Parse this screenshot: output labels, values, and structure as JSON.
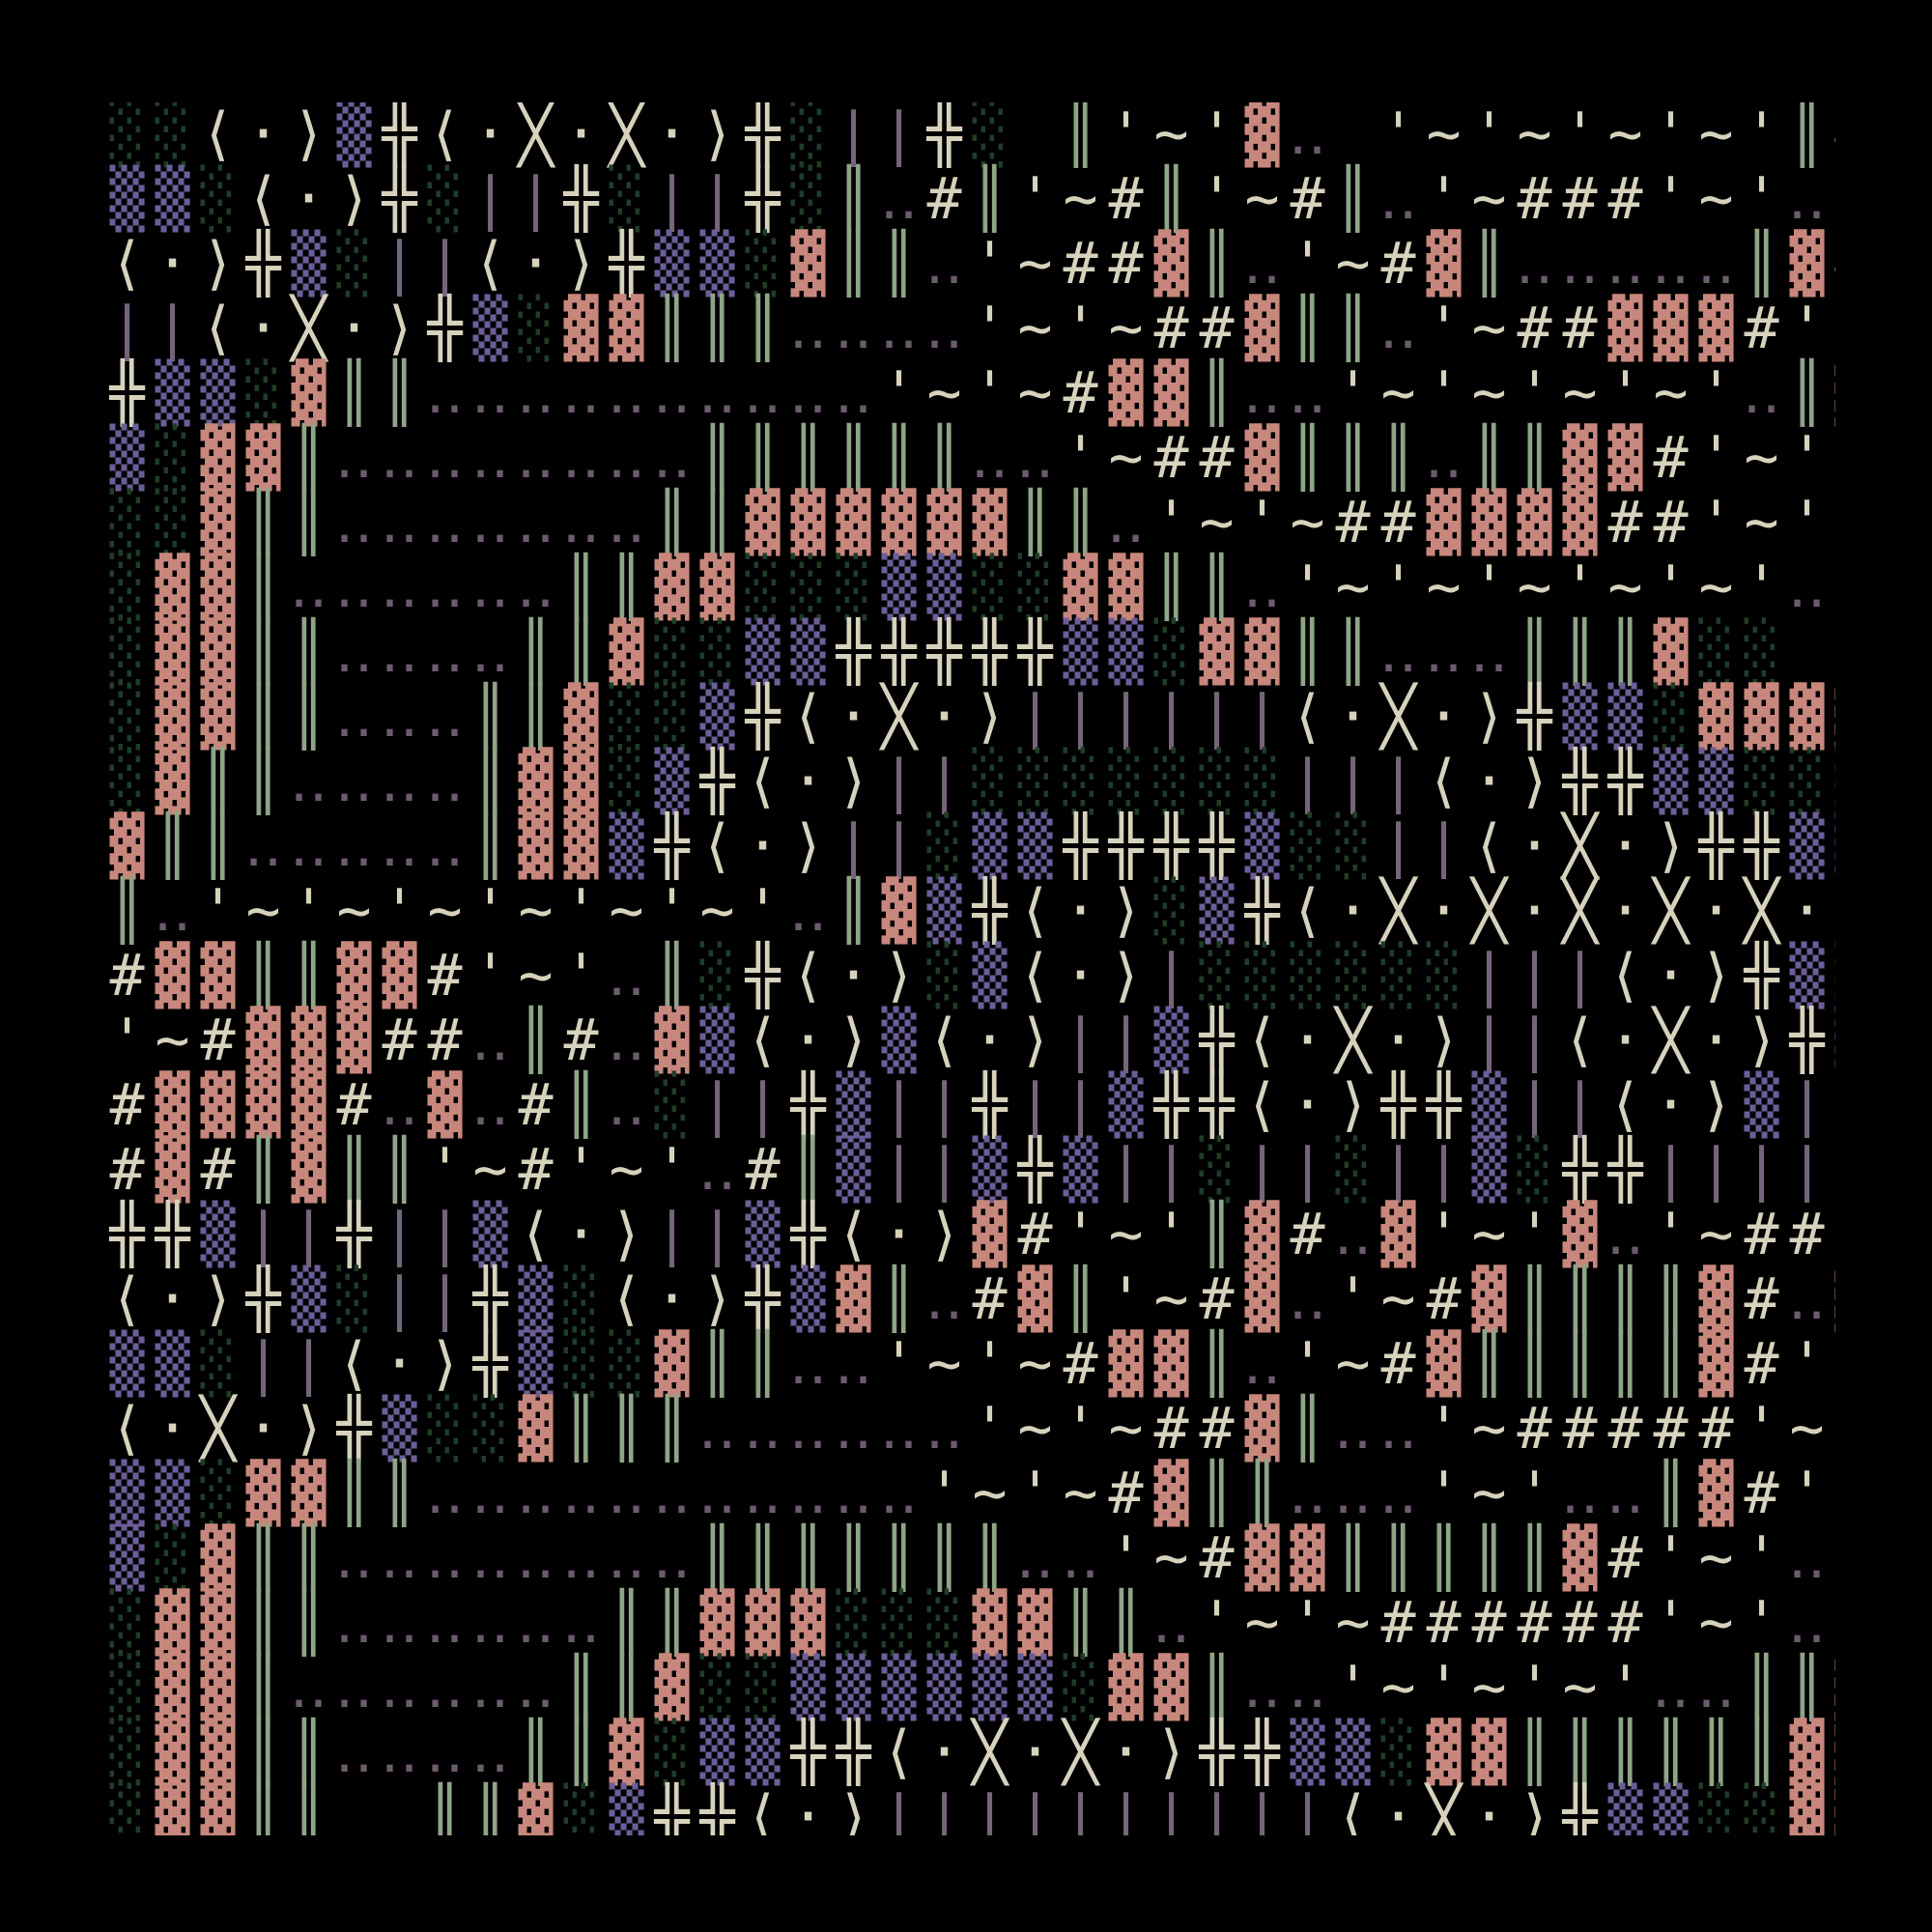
{
  "palette": {
    "background": "#000000",
    "light_shade": "#1f3d27",
    "medium_shade": "#6b5e99",
    "dark_shade": "#c8877c",
    "double_bar": "#8ea587",
    "cream": "#d6d2bc",
    "thin_bar": "#75657a",
    "dots": "#6c5a6e"
  },
  "rows": [
    "░░⟨·⟩▒╬⟨·╳·╳·⟩╬░||╬░ ║'~'▓‥ '~'~'~'~'║# ║ ║ ║#‥ '~'~'‥ ▓'~'▓‥ ░|",
    "▒▒░⟨·⟩╬░||╬░||╬░║‥#║'~#║'~#║‥'~###'~'‥║#‥#║'~'▓=",
    "⟨·⟩╬▒░||⟨·⟩╬▒▒░▓║║‥'~##▓║‥'~#▓║‥‥‥‥‥║▓#‥▓'~'║",
    "||⟨·╳·⟩╬▒░▓▓║║║‥‥‥‥'~'~##▓║║‥'~##▓▓▓#'~'‥║▓'~'‥▓",
    "╬▒▒░▓║║‥‥‥‥‥‥‥‥‥‥'~'~#▓▓║‥‥'~'~'~'~'‥║▓#'~'‥▓",
    "▒░▓▓║‥‥‥‥‥‥‥‥║║║║║║‥‥'~##▓║║║‥║║▓▓#'~'‥▓",
    "░░▓║║‥‥‥‥‥‥‥║║▓▓▓▓▓▓║║‥'~'~##▓▓▓▓##'~'‥║▓",
    "░▓▓║‥‥‥‥‥‥║║▓▓░░░▒▒░░▓▓║║‥'~'~'~'~'~'‥‥║▓░",
    "░▓▓║║‥‥‥‥║║▓░░▒▒╬╬╬╬╬▒▒░▓▓║║‥‥‥║║║▓░░",
    "░▓▓║║‥‥‥║║▓░░▒╬⟨·╳·⟩||||||⟨·╳·⟩╬▒▒░▓▓▓▓▓▓░░▒▒",
    "░▓║║‥‥‥‥║▓▓░▒╬⟨·⟩||░░░░░░░|||⟨·⟩╬╬▒▒░░░░▒▒▒=",
    "▓║║‥‥‥‥‥║▓▓▒╬⟨·⟩||░▒▒╬╬╬╬▒░░||⟨·╳·⟩╬╬▒▒▒▒╬╬=",
    "║‥'~'~'~'~'~'~'‥║▓▒╬⟨·⟩░▒╬⟨·╳·╳·╳·╳·╳·⟩╬╬▒░|||⟨·╳·⟩╬╬╬╬╬=",
    "#▓▓║║▓▓#'~'‥║░╬⟨·⟩░▒⟨·⟩|░░░░░░|||⟨·⟩╬▒░░||⟨·╳·⟩╬╬╬▒",
    "'~#▓▓▓##‥║#‥▓▒⟨·⟩▒⟨·⟩||▒╬⟨·╳·⟩||⟨·╳·⟩╬▒░||⟨·⟩╬▒░||⟨·⟩╬▒░",
    "#▓▓▓▓#‥▓‥#║‥░||╬▒||╬||▒╬╬⟨·⟩╬╬▒||⟨·⟩▒||╬||╬░⟨·⟩░",
    "#▓#║▓║║'~#'~'‥#║▒||▒╬▒||░||░||▒░╬╬||||⟨·⟩░▒▒░||‥#",
    "╬╬▒||╬||▒⟨·⟩||▒╬⟨·⟩▓#'~'║▓#‥▓'~'▓‥'~##'~'‥▓‥'~#▓▓▓░░",
    "⟨·⟩╬▒░||╬▒░⟨·⟩╬▒▓║‥#▓║'~#▓‥'~#▓║║║║▓#‥▓'~'║'~'║▒",
    "▒▒░||⟨·⟩╬▒░░▓║║‥‥'~'~#▓▓║‥'~#▓║║║║║▓#'~'‥▓'~'║▓",
    "⟨·╳·⟩╬▒░░▓║║║‥‥‥‥‥‥'~'~##▓║‥‥'~#####'~'‥║▓'~'‥▓",
    "▒▒░▓▓║║‥‥‥‥‥‥‥‥‥‥‥'~'~#▓║║‥‥‥'~'‥‥║▓#'~'‥",
    "▒░▓║║‥‥‥‥‥‥‥‥║║║║║║║‥‥'~#▓▓║║║║║▓#'~'‥║▓",
    "░▓▓║║‥‥‥‥‥‥║║▓▓▓░░░▓▓║║‥'~'~######'~'‥‥║▓",
    "░▓▓║‥‥‥‥‥‥║║▓░░▒▒▒▒▒▒░▓▓║‥‥'~'~'~'‥‥║║▓░",
    "░▓▓║║‥‥‥‥║║▓░▒▒╬╬⟨·╳·╳·⟩╬╬▒▒░▓▓║║║║║║▓▓░▒",
    "░▓▓║║  ║║▓░▒╬╬⟨·⟩||||||||||⟨·╳·⟩╬▒▒░░▓▓▓░░░▒▒"
  ]
}
